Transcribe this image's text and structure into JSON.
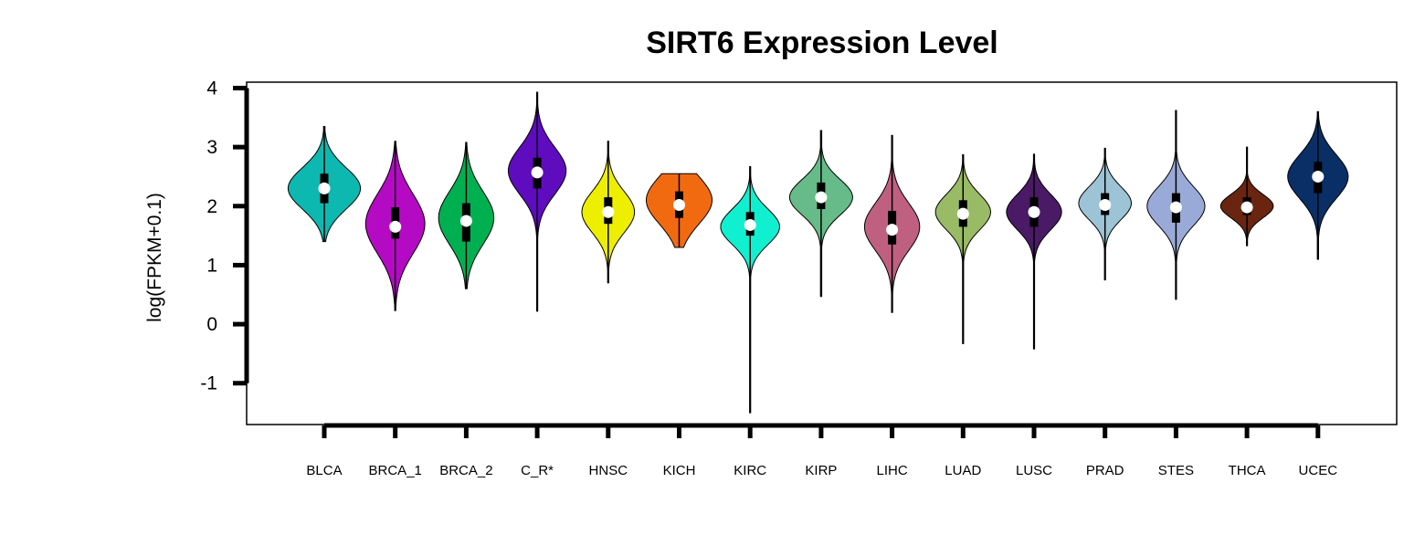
{
  "chart_data": {
    "type": "violin",
    "title": "SIRT6 Expression Level",
    "ylabel": "log(FPKM+0.1)",
    "xlabel": "",
    "ylim": [
      -1.7,
      4.1
    ],
    "yticks": [
      -1,
      0,
      1,
      2,
      3,
      4
    ],
    "grid": false,
    "legend": "none",
    "categories": [
      "BLCA",
      "BRCA_1",
      "BRCA_2",
      "C_R*",
      "HNSC",
      "KICH",
      "KIRC",
      "KIRP",
      "LIHC",
      "LUAD",
      "LUSC",
      "PRAD",
      "STES",
      "THCA",
      "UCEC"
    ],
    "series": [
      {
        "category": "BLCA",
        "color": "#0db8b0",
        "min": 1.4,
        "q1": 2.05,
        "median": 2.3,
        "q3": 2.55,
        "max": 3.35,
        "mode": 2.3,
        "spread": 0.35,
        "width": 0.55
      },
      {
        "category": "BRCA_1",
        "color": "#b50ac4",
        "min": 0.23,
        "q1": 1.45,
        "median": 1.65,
        "q3": 1.98,
        "max": 3.1,
        "mode": 1.7,
        "spread": 0.5,
        "width": 0.45
      },
      {
        "category": "BRCA_2",
        "color": "#00b050",
        "min": 0.6,
        "q1": 1.4,
        "median": 1.75,
        "q3": 2.05,
        "max": 3.08,
        "mode": 1.8,
        "spread": 0.45,
        "width": 0.42
      },
      {
        "category": "C_R*",
        "color": "#5e0cbe",
        "min": 0.22,
        "q1": 2.3,
        "median": 2.57,
        "q3": 2.82,
        "max": 3.93,
        "mode": 2.6,
        "spread": 0.4,
        "width": 0.44
      },
      {
        "category": "HNSC",
        "color": "#eeee00",
        "min": 0.7,
        "q1": 1.7,
        "median": 1.9,
        "q3": 2.15,
        "max": 3.1,
        "mode": 1.9,
        "spread": 0.35,
        "width": 0.4
      },
      {
        "category": "KICH",
        "color": "#f26a10",
        "min": 1.3,
        "q1": 1.8,
        "median": 2.02,
        "q3": 2.25,
        "max": 2.55,
        "mode": 2.1,
        "spread": 0.4,
        "width": 0.5
      },
      {
        "category": "KIRC",
        "color": "#10f0d0",
        "min": -1.5,
        "q1": 1.5,
        "median": 1.68,
        "q3": 1.9,
        "max": 2.67,
        "mode": 1.65,
        "spread": 0.3,
        "width": 0.45
      },
      {
        "category": "KIRP",
        "color": "#66bb88",
        "min": 0.47,
        "q1": 1.95,
        "median": 2.15,
        "q3": 2.4,
        "max": 3.28,
        "mode": 2.15,
        "spread": 0.3,
        "width": 0.48
      },
      {
        "category": "LIHC",
        "color": "#c06080",
        "min": 0.2,
        "q1": 1.35,
        "median": 1.6,
        "q3": 1.92,
        "max": 3.2,
        "mode": 1.65,
        "spread": 0.4,
        "width": 0.42
      },
      {
        "category": "LUAD",
        "color": "#99bb66",
        "min": -0.33,
        "q1": 1.65,
        "median": 1.87,
        "q3": 2.1,
        "max": 2.87,
        "mode": 1.9,
        "spread": 0.3,
        "width": 0.42
      },
      {
        "category": "LUSC",
        "color": "#4a1a66",
        "min": -0.42,
        "q1": 1.65,
        "median": 1.9,
        "q3": 2.15,
        "max": 2.88,
        "mode": 1.9,
        "spread": 0.3,
        "width": 0.42
      },
      {
        "category": "PRAD",
        "color": "#9cc4d6",
        "min": 0.75,
        "q1": 1.85,
        "median": 2.02,
        "q3": 2.22,
        "max": 2.98,
        "mode": 2.05,
        "spread": 0.28,
        "width": 0.4
      },
      {
        "category": "STES",
        "color": "#99aad8",
        "min": 0.42,
        "q1": 1.72,
        "median": 1.98,
        "q3": 2.22,
        "max": 3.62,
        "mode": 2.0,
        "spread": 0.33,
        "width": 0.44
      },
      {
        "category": "THCA",
        "color": "#6a2510",
        "min": 1.33,
        "q1": 1.85,
        "median": 1.98,
        "q3": 2.15,
        "max": 3.0,
        "mode": 2.0,
        "spread": 0.2,
        "width": 0.4
      },
      {
        "category": "UCEC",
        "color": "#0a2f66",
        "min": 1.1,
        "q1": 2.22,
        "median": 2.5,
        "q3": 2.75,
        "max": 3.6,
        "mode": 2.5,
        "spread": 0.37,
        "width": 0.46
      }
    ]
  }
}
